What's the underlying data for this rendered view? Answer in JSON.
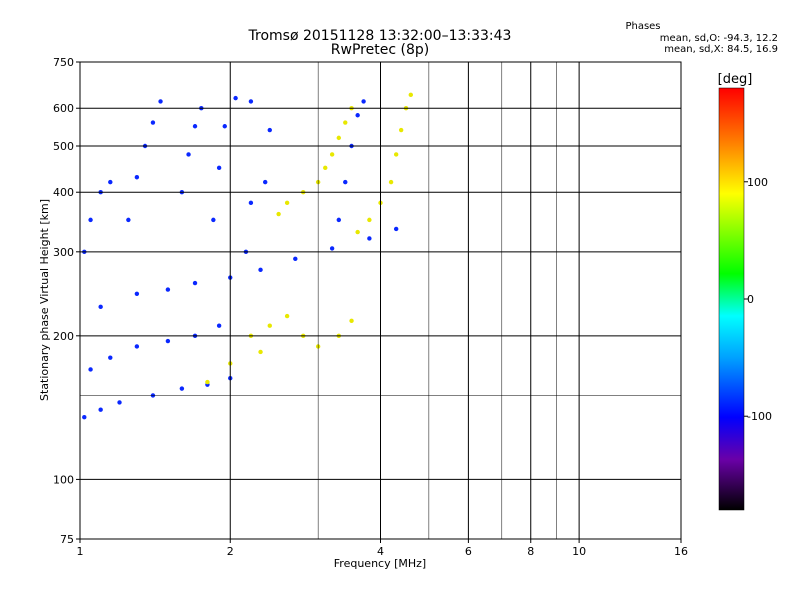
{
  "chart_data": {
    "type": "scatter",
    "title": "Tromsø 20151128 13:32:00–13:33:43",
    "subtitle": "RwPretec (8p)",
    "xlabel": "Frequency [MHz]",
    "ylabel": "Stationary phase Virtual Height [km]",
    "x_scale": "log",
    "y_scale": "log",
    "xlim": [
      1,
      16
    ],
    "ylim": [
      75,
      750
    ],
    "x_ticks": [
      1,
      2,
      4,
      6,
      8,
      10,
      16
    ],
    "x_tick_labels": [
      "1",
      "2",
      "4",
      "6",
      "8",
      "10",
      "16"
    ],
    "x_minor_ticks": [
      3,
      5,
      7,
      9
    ],
    "y_ticks": [
      75,
      100,
      200,
      300,
      400,
      500,
      600,
      750
    ],
    "y_tick_labels": [
      "75",
      "100",
      "200",
      "300",
      "400",
      "500",
      "600",
      "750"
    ],
    "y_minor_ticks": [
      150
    ],
    "grid": true,
    "colorbar": {
      "label": "[deg]",
      "min": -180,
      "max": 180,
      "ticks": [
        -100,
        0,
        100
      ],
      "tick_labels": [
        "-100",
        "0",
        "100"
      ],
      "colors": [
        "#000000",
        "#6a00a8",
        "#0000ff",
        "#00a0ff",
        "#00ffff",
        "#00ff00",
        "#ffff00",
        "#ff8000",
        "#ff0000"
      ]
    },
    "stats": {
      "title": "Phases",
      "o_line": "mean, sd,O: -94.3, 12.2",
      "x_line": "mean, sd,X:  84.5, 16.9"
    },
    "point_colors": {
      "o_mode": "#0a28ff",
      "x_mode": "#e8e800"
    },
    "series": [
      {
        "mode": "O",
        "phase_mean": -94.3,
        "phase_sd": 12.2,
        "points": [
          [
            1.02,
            135
          ],
          [
            1.1,
            140
          ],
          [
            1.2,
            145
          ],
          [
            1.4,
            150
          ],
          [
            1.6,
            155
          ],
          [
            1.8,
            158
          ],
          [
            2.0,
            163
          ],
          [
            1.05,
            170
          ],
          [
            1.15,
            180
          ],
          [
            1.3,
            190
          ],
          [
            1.5,
            195
          ],
          [
            1.7,
            200
          ],
          [
            1.9,
            210
          ],
          [
            1.1,
            230
          ],
          [
            1.3,
            245
          ],
          [
            1.5,
            250
          ],
          [
            1.7,
            258
          ],
          [
            2.0,
            265
          ],
          [
            2.3,
            275
          ],
          [
            2.7,
            290
          ],
          [
            3.2,
            305
          ],
          [
            3.8,
            320
          ],
          [
            4.3,
            335
          ],
          [
            1.02,
            300
          ],
          [
            1.05,
            350
          ],
          [
            1.1,
            400
          ],
          [
            1.15,
            420
          ],
          [
            1.25,
            350
          ],
          [
            1.3,
            430
          ],
          [
            1.35,
            500
          ],
          [
            1.4,
            560
          ],
          [
            1.45,
            620
          ],
          [
            1.6,
            400
          ],
          [
            1.65,
            480
          ],
          [
            1.7,
            550
          ],
          [
            1.75,
            600
          ],
          [
            1.85,
            350
          ],
          [
            1.9,
            450
          ],
          [
            1.95,
            550
          ],
          [
            2.05,
            630
          ],
          [
            2.2,
            620
          ],
          [
            2.15,
            300
          ],
          [
            2.2,
            380
          ],
          [
            2.35,
            420
          ],
          [
            2.4,
            540
          ],
          [
            3.3,
            350
          ],
          [
            3.4,
            420
          ],
          [
            3.5,
            500
          ],
          [
            3.6,
            580
          ],
          [
            3.7,
            620
          ]
        ]
      },
      {
        "mode": "X",
        "phase_mean": 84.5,
        "phase_sd": 16.9,
        "points": [
          [
            2.5,
            360
          ],
          [
            2.6,
            380
          ],
          [
            2.8,
            400
          ],
          [
            3.0,
            420
          ],
          [
            3.1,
            450
          ],
          [
            3.2,
            480
          ],
          [
            3.3,
            520
          ],
          [
            3.4,
            560
          ],
          [
            3.5,
            600
          ],
          [
            3.6,
            330
          ],
          [
            3.8,
            350
          ],
          [
            4.0,
            380
          ],
          [
            4.2,
            420
          ],
          [
            4.3,
            480
          ],
          [
            4.4,
            540
          ],
          [
            4.5,
            600
          ],
          [
            4.6,
            640
          ],
          [
            2.2,
            200
          ],
          [
            2.4,
            210
          ],
          [
            2.6,
            220
          ],
          [
            2.8,
            200
          ],
          [
            3.0,
            190
          ],
          [
            3.3,
            200
          ],
          [
            3.5,
            215
          ],
          [
            1.8,
            160
          ],
          [
            2.0,
            175
          ],
          [
            2.3,
            185
          ]
        ]
      }
    ]
  }
}
